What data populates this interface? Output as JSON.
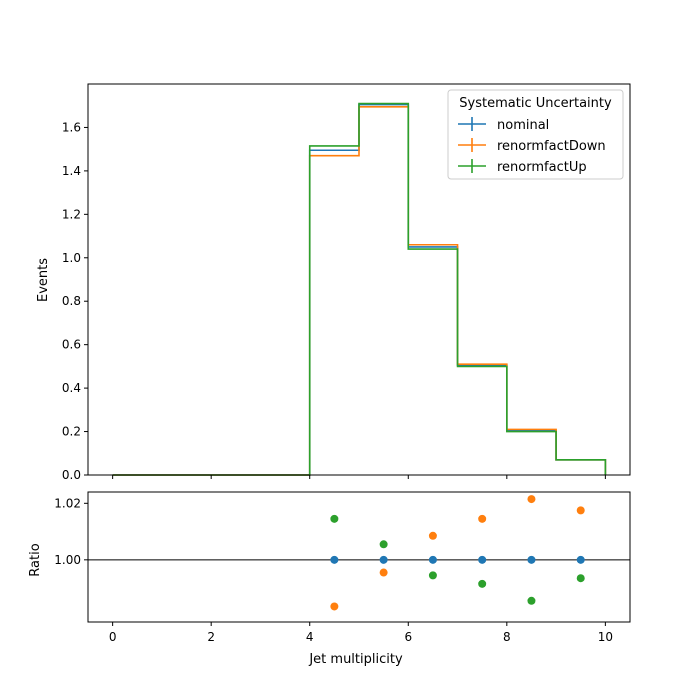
{
  "chart_data": [
    {
      "type": "line",
      "subtype": "step-histogram",
      "title": "",
      "ylabel": "Events",
      "xlim": [
        -0.5,
        10.5
      ],
      "ylim": [
        0,
        1.8
      ],
      "yticks": [
        0.0,
        0.2,
        0.4,
        0.6,
        0.8,
        1.0,
        1.2,
        1.4,
        1.6
      ],
      "ytick_labels": [
        "0.0",
        "0.2",
        "0.4",
        "0.6",
        "0.8",
        "1.0",
        "1.2",
        "1.4",
        "1.6"
      ],
      "bin_edges": [
        0,
        1,
        2,
        3,
        4,
        5,
        6,
        7,
        8,
        9,
        10
      ],
      "legend": {
        "title": "Systematic Uncertainty",
        "placement": "top-right"
      },
      "series": [
        {
          "name": "nominal",
          "color": "#1f77b4",
          "values": [
            0,
            0,
            0,
            0,
            1.495,
            1.705,
            1.05,
            0.505,
            0.205,
            0.07
          ]
        },
        {
          "name": "renormfactDown",
          "color": "#ff7f0e",
          "values": [
            0,
            0,
            0,
            0,
            1.47,
            1.695,
            1.06,
            0.51,
            0.21,
            0.07
          ]
        },
        {
          "name": "renormfactUp",
          "color": "#2ca02c",
          "values": [
            0,
            0,
            0,
            0,
            1.515,
            1.71,
            1.04,
            0.5,
            0.2,
            0.07
          ]
        }
      ]
    },
    {
      "type": "scatter",
      "xlabel": "Jet multiplicity",
      "ylabel": "Ratio",
      "xlim": [
        -0.5,
        10.5
      ],
      "ylim": [
        0.978,
        1.024
      ],
      "xticks": [
        0,
        2,
        4,
        6,
        8,
        10
      ],
      "xtick_labels": [
        "0",
        "2",
        "4",
        "6",
        "8",
        "10"
      ],
      "yticks": [
        1.0,
        1.02
      ],
      "ytick_labels": [
        "1.00",
        "1.02"
      ],
      "reference_line": 1.0,
      "x": [
        4.5,
        5.5,
        6.5,
        7.5,
        8.5,
        9.5
      ],
      "series": [
        {
          "name": "nominal",
          "color": "#1f77b4",
          "values": [
            1.0,
            1.0,
            1.0,
            1.0,
            1.0,
            1.0
          ]
        },
        {
          "name": "renormfactDown",
          "color": "#ff7f0e",
          "values": [
            0.9835,
            0.9955,
            1.0085,
            1.0145,
            1.0215,
            1.0175
          ]
        },
        {
          "name": "renormfactUp",
          "color": "#2ca02c",
          "values": [
            1.0145,
            1.0055,
            0.9945,
            0.9915,
            0.9855,
            0.9935
          ]
        }
      ]
    }
  ]
}
